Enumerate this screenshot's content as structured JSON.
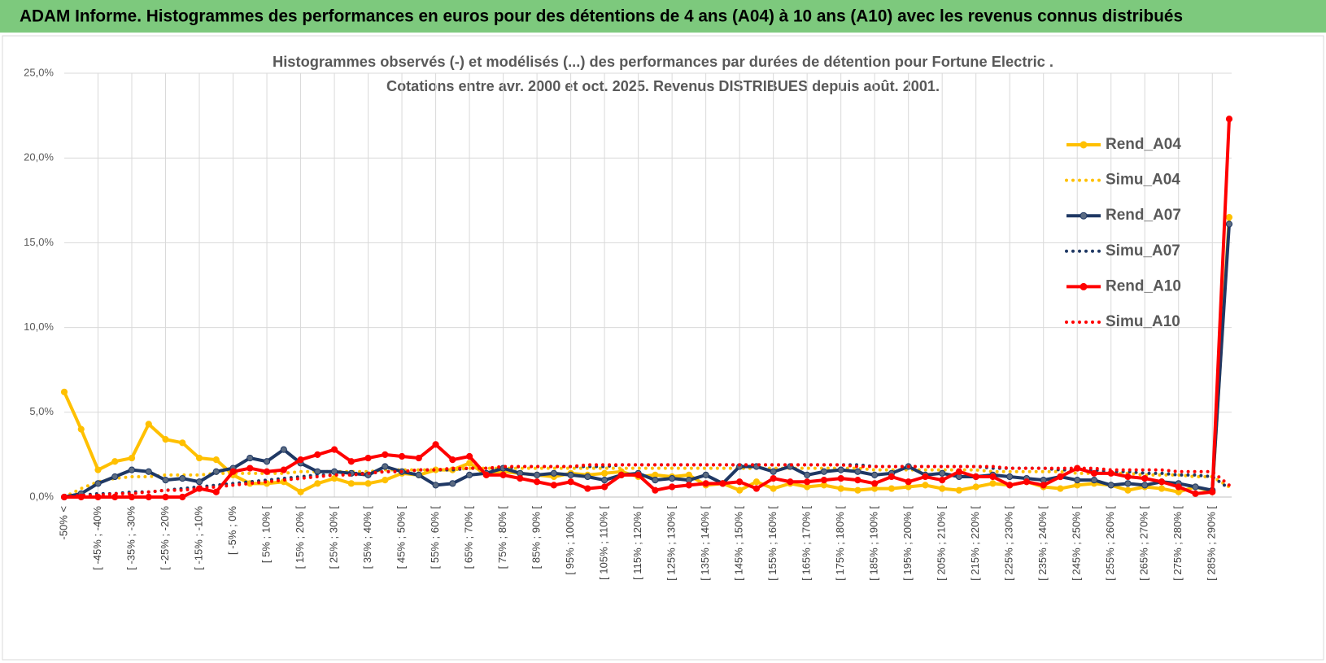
{
  "header": {
    "title": "ADAM Informe. Histogrammes des performances en euros pour des détentions de 4 ans (A04) à 10 ans (A10) avec les revenus connus distribués"
  },
  "chart_data": {
    "type": "line",
    "title": "Histogrammes observés (-) et modélisés (...) des performances par durées de détention pour Fortune Electric .",
    "subtitle": "Cotations entre avr. 2000 et oct. 2025. Revenus DISTRIBUES depuis août. 2001.",
    "categories": [
      "-50% <",
      null,
      "[ -45% ; -40%",
      null,
      "[ -35% ; -30%",
      null,
      "[ -25% ; -20%",
      null,
      "[ -15% ; -10%",
      null,
      "[ -5% ; 0%",
      null,
      "[ 5% ; 10% [",
      null,
      "[ 15% ; 20% [",
      null,
      "[ 25% ; 30% [",
      null,
      "[ 35% ; 40% [",
      null,
      "[ 45% ; 50% [",
      null,
      "[ 55% ; 60% [",
      null,
      "[ 65% ; 70% [",
      null,
      "[ 75% ; 80% [",
      null,
      "[ 85% ; 90% [",
      null,
      "[ 95% ; 100% [",
      null,
      "[ 105% ; 110% [",
      null,
      "[ 115% ; 120% [",
      null,
      "[ 125% ; 130% [",
      null,
      "[ 135% ; 140% [",
      null,
      "[ 145% ; 150% [",
      null,
      "[ 155% ; 160% [",
      null,
      "[ 165% ; 170% [",
      null,
      "[ 175% ; 180% [",
      null,
      "[ 185% ; 190% [",
      null,
      "[ 195% ; 200% [",
      null,
      "[ 205% ; 210% [",
      null,
      "[ 215% ; 220% [",
      null,
      "[ 225% ; 230% [",
      null,
      "[ 235% ; 240% [",
      null,
      "[ 245% ; 250% [",
      null,
      "[ 255% ; 260% [",
      null,
      "[ 265% ; 270% [",
      null,
      "[ 275% ; 280% [",
      null,
      "[ 285% ; 290% [",
      null
    ],
    "series": [
      {
        "name": "Rend_A04",
        "color": "#FFC000",
        "style": "solid",
        "marker": "#FFC000",
        "values": [
          6.2,
          4.0,
          1.6,
          2.1,
          2.3,
          4.3,
          3.4,
          3.2,
          2.3,
          2.2,
          1.3,
          0.8,
          0.8,
          0.9,
          0.3,
          0.8,
          1.1,
          0.8,
          0.8,
          1.0,
          1.4,
          1.3,
          1.6,
          1.6,
          2.0,
          1.3,
          1.5,
          1.4,
          1.3,
          1.2,
          1.4,
          1.3,
          1.4,
          1.5,
          1.2,
          1.3,
          1.2,
          1.3,
          0.7,
          0.8,
          0.4,
          0.9,
          0.5,
          0.8,
          0.6,
          0.7,
          0.5,
          0.4,
          0.5,
          0.5,
          0.6,
          0.7,
          0.5,
          0.4,
          0.6,
          0.8,
          0.7,
          0.9,
          0.6,
          0.5,
          0.7,
          0.8,
          0.7,
          0.4,
          0.6,
          0.5,
          0.3,
          0.6,
          0.3,
          16.5
        ]
      },
      {
        "name": "Simu_A04",
        "color": "#FFC000",
        "style": "dotted",
        "values": [
          0,
          0.5,
          0.9,
          1.1,
          1.2,
          1.2,
          1.3,
          1.3,
          1.3,
          1.4,
          1.4,
          1.4,
          1.4,
          1.4,
          1.5,
          1.5,
          1.5,
          1.5,
          1.5,
          1.6,
          1.6,
          1.6,
          1.6,
          1.6,
          1.7,
          1.7,
          1.7,
          1.7,
          1.7,
          1.7,
          1.7,
          1.7,
          1.7,
          1.7,
          1.7,
          1.7,
          1.7,
          1.7,
          1.7,
          1.7,
          1.7,
          1.7,
          1.7,
          1.7,
          1.7,
          1.7,
          1.7,
          1.7,
          1.6,
          1.6,
          1.6,
          1.6,
          1.6,
          1.6,
          1.6,
          1.5,
          1.5,
          1.5,
          1.5,
          1.5,
          1.4,
          1.4,
          1.4,
          1.4,
          1.3,
          1.3,
          1.3,
          1.2,
          1.2,
          0.6
        ]
      },
      {
        "name": "Rend_A07",
        "color": "#1F3864",
        "style": "solid",
        "marker": "#5B6B82",
        "values": [
          0,
          0.2,
          0.8,
          1.2,
          1.6,
          1.5,
          1.0,
          1.1,
          0.9,
          1.5,
          1.7,
          2.3,
          2.1,
          2.8,
          2.0,
          1.5,
          1.5,
          1.4,
          1.3,
          1.8,
          1.5,
          1.3,
          0.7,
          0.8,
          1.3,
          1.4,
          1.7,
          1.4,
          1.3,
          1.4,
          1.3,
          1.2,
          1.0,
          1.3,
          1.4,
          1.0,
          1.1,
          1.0,
          1.3,
          0.8,
          1.8,
          1.8,
          1.5,
          1.8,
          1.3,
          1.5,
          1.6,
          1.5,
          1.3,
          1.4,
          1.8,
          1.3,
          1.4,
          1.2,
          1.2,
          1.3,
          1.2,
          1.1,
          1.0,
          1.2,
          1.0,
          1.0,
          0.7,
          0.8,
          0.7,
          0.9,
          0.8,
          0.6,
          0.4,
          16.1
        ]
      },
      {
        "name": "Simu_A07",
        "color": "#1F3864",
        "style": "dotted",
        "values": [
          0,
          0.1,
          0.2,
          0.2,
          0.3,
          0.3,
          0.4,
          0.5,
          0.6,
          0.7,
          0.8,
          0.9,
          1.0,
          1.1,
          1.2,
          1.3,
          1.3,
          1.4,
          1.4,
          1.5,
          1.5,
          1.6,
          1.6,
          1.6,
          1.7,
          1.7,
          1.7,
          1.8,
          1.8,
          1.8,
          1.8,
          1.8,
          1.8,
          1.9,
          1.9,
          1.9,
          1.9,
          1.9,
          1.9,
          1.9,
          1.9,
          1.9,
          1.9,
          1.9,
          1.9,
          1.9,
          1.9,
          1.9,
          1.8,
          1.8,
          1.8,
          1.8,
          1.8,
          1.8,
          1.8,
          1.7,
          1.7,
          1.7,
          1.7,
          1.6,
          1.6,
          1.6,
          1.5,
          1.5,
          1.4,
          1.4,
          1.3,
          1.3,
          1.2,
          0.5
        ]
      },
      {
        "name": "Rend_A10",
        "color": "#FF0000",
        "style": "solid",
        "marker": "#FF0000",
        "values": [
          0,
          0,
          0,
          0,
          0,
          0,
          0,
          0,
          0.5,
          0.3,
          1.5,
          1.7,
          1.5,
          1.6,
          2.2,
          2.5,
          2.8,
          2.1,
          2.3,
          2.5,
          2.4,
          2.3,
          3.1,
          2.2,
          2.4,
          1.3,
          1.3,
          1.1,
          0.9,
          0.7,
          0.9,
          0.5,
          0.6,
          1.3,
          1.3,
          0.4,
          0.6,
          0.7,
          0.8,
          0.8,
          0.9,
          0.5,
          1.1,
          0.9,
          0.9,
          1.0,
          1.1,
          1.0,
          0.8,
          1.2,
          0.9,
          1.2,
          1.0,
          1.5,
          1.2,
          1.2,
          0.7,
          0.9,
          0.7,
          1.2,
          1.7,
          1.4,
          1.4,
          1.2,
          1.1,
          0.9,
          0.6,
          0.2,
          0.3,
          22.3
        ]
      },
      {
        "name": "Simu_A10",
        "color": "#FF0000",
        "style": "dotted",
        "values": [
          0,
          0.1,
          0.1,
          0.2,
          0.2,
          0.3,
          0.4,
          0.4,
          0.5,
          0.6,
          0.7,
          0.8,
          0.9,
          1.0,
          1.1,
          1.2,
          1.3,
          1.3,
          1.4,
          1.5,
          1.5,
          1.6,
          1.6,
          1.7,
          1.7,
          1.7,
          1.8,
          1.8,
          1.8,
          1.8,
          1.8,
          1.9,
          1.9,
          1.9,
          1.9,
          1.9,
          1.9,
          1.9,
          1.9,
          1.9,
          1.9,
          1.9,
          1.9,
          1.9,
          1.9,
          1.9,
          1.9,
          1.8,
          1.8,
          1.8,
          1.8,
          1.8,
          1.8,
          1.8,
          1.8,
          1.8,
          1.7,
          1.7,
          1.7,
          1.7,
          1.7,
          1.7,
          1.6,
          1.6,
          1.6,
          1.6,
          1.5,
          1.5,
          1.5,
          0.7
        ]
      }
    ],
    "ylim": [
      0,
      25
    ],
    "yticks": [
      {
        "value": 0,
        "label": "0,0%"
      },
      {
        "value": 5,
        "label": "5,0%"
      },
      {
        "value": 10,
        "label": "10,0%"
      },
      {
        "value": 15,
        "label": "15,0%"
      },
      {
        "value": 20,
        "label": "20,0%"
      },
      {
        "value": 25,
        "label": "25,0%"
      }
    ],
    "grid": true,
    "legend": "right"
  }
}
